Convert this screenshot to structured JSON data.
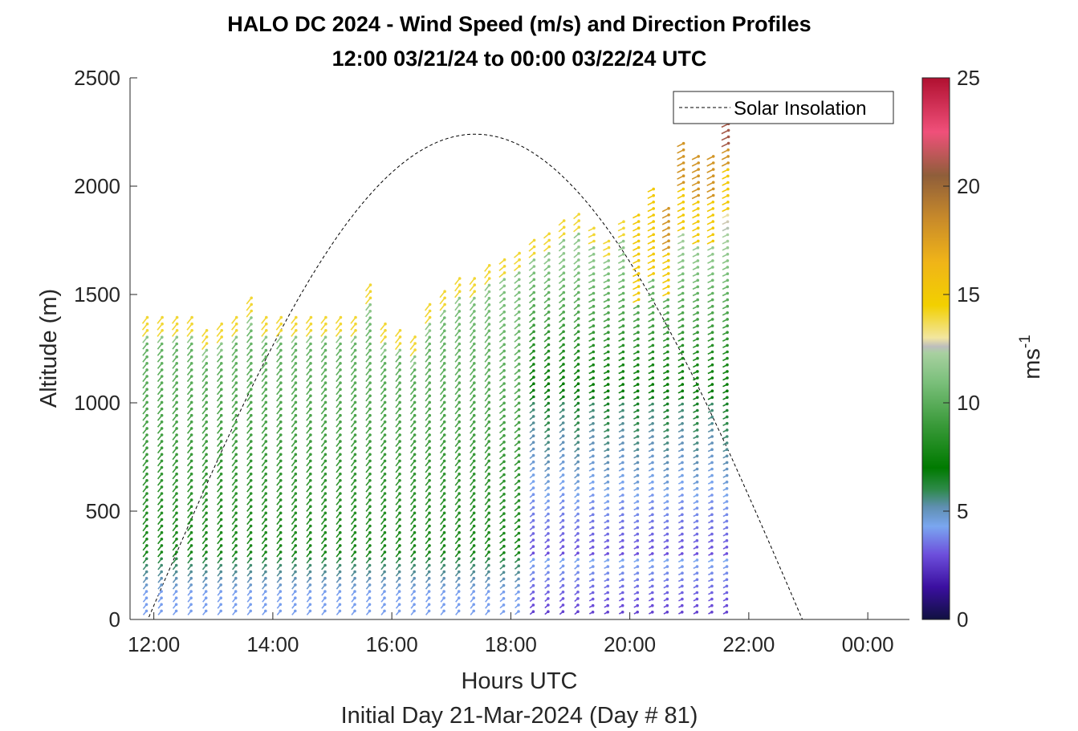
{
  "chart_data": {
    "type": "scatter",
    "title": "HALO DC 2024 - Wind Speed (m/s) and Direction Profiles",
    "subtitle": "12:00 03/21/24 to 00:00 03/22/24  UTC",
    "xlabel": "Hours UTC",
    "xlabel2": "Initial Day 21-Mar-2024 (Day # 81)",
    "ylabel": "Altitude (m)",
    "colorbar_label": "ms",
    "colorbar_label_exp": "-1",
    "xlim": [
      11.6,
      24.7
    ],
    "ylim": [
      0,
      2500
    ],
    "x_ticks": [
      12,
      14,
      16,
      18,
      20,
      22,
      24
    ],
    "x_tick_labels": [
      "12:00",
      "14:00",
      "16:00",
      "18:00",
      "20:00",
      "22:00",
      "00:00"
    ],
    "y_ticks": [
      0,
      500,
      1000,
      1500,
      2000,
      2500
    ],
    "y_tick_labels": [
      "0",
      "500",
      "1000",
      "1500",
      "2000",
      "2500"
    ],
    "cbar_ticks": [
      0,
      5,
      10,
      15,
      20,
      25
    ],
    "cbar_tick_labels": [
      "0",
      "5",
      "10",
      "15",
      "20",
      "25"
    ],
    "cbar_range": [
      0,
      25
    ],
    "legend": {
      "entries": [
        "Solar Insolation"
      ],
      "placement": "top-right"
    },
    "grid": false,
    "solar_insolation": {
      "sunrise_hour": 11.9,
      "sunset_hour": 22.9,
      "peak_hour": 17.4,
      "peak_altitude": 2240
    },
    "profile_times": [
      11.85,
      12.1,
      12.35,
      12.6,
      12.85,
      13.1,
      13.35,
      13.6,
      13.85,
      14.1,
      14.35,
      14.6,
      14.85,
      15.1,
      15.35,
      15.6,
      15.85,
      16.1,
      16.35,
      16.6,
      16.85,
      17.1,
      17.35,
      17.6,
      17.85,
      18.1,
      18.35,
      18.6,
      18.85,
      19.1,
      19.35,
      19.6,
      19.85,
      20.1,
      20.35,
      20.6,
      20.85,
      21.1,
      21.35,
      21.6
    ],
    "profile_top_altitudes": [
      1400,
      1400,
      1400,
      1400,
      1320,
      1360,
      1400,
      1480,
      1400,
      1400,
      1400,
      1400,
      1400,
      1400,
      1400,
      1540,
      1360,
      1340,
      1300,
      1440,
      1520,
      1560,
      1580,
      1620,
      1660,
      1700,
      1740,
      1780,
      1840,
      1870,
      1800,
      1760,
      1830,
      1870,
      1990,
      1900,
      2210,
      2140,
      2140,
      2290
    ],
    "colormap_stops": [
      [
        0,
        "#101040"
      ],
      [
        1.5,
        "#3b0fa0"
      ],
      [
        3,
        "#6d4fdc"
      ],
      [
        4.3,
        "#7aa6f0"
      ],
      [
        5.2,
        "#5f8fb0"
      ],
      [
        6,
        "#2e8a4a"
      ],
      [
        7,
        "#007a00"
      ],
      [
        9,
        "#3a9a3a"
      ],
      [
        11,
        "#7cc07c"
      ],
      [
        12.3,
        "#a8d0a0"
      ],
      [
        12.6,
        "#bdbdbd"
      ],
      [
        13,
        "#f2e6a0"
      ],
      [
        14.5,
        "#f2d000"
      ],
      [
        16.5,
        "#f0b418"
      ],
      [
        18.5,
        "#c88a2a"
      ],
      [
        20.5,
        "#8f5e3a"
      ],
      [
        22.5,
        "#f0507a"
      ],
      [
        25,
        "#b01030"
      ]
    ]
  }
}
